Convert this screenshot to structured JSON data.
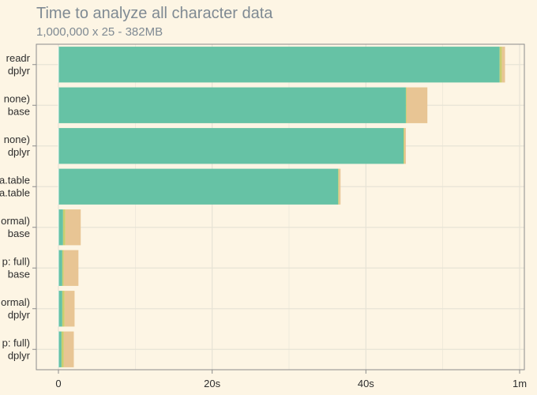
{
  "chart_data": {
    "type": "bar",
    "orientation": "horizontal",
    "stacked": true,
    "title": "Time to analyze all character data",
    "subtitle": "1,000,000 x 25 - 382MB",
    "xlabel": "",
    "ylabel": "",
    "xlim": [
      0,
      60
    ],
    "x_ticks": [
      {
        "value": 0,
        "label": "0"
      },
      {
        "value": 20,
        "label": "20s"
      },
      {
        "value": 40,
        "label": "40s"
      },
      {
        "value": 60,
        "label": "1m"
      }
    ],
    "grid": true,
    "legend": "none",
    "categories": [
      {
        "line1": "readr",
        "line2": "dplyr"
      },
      {
        "line1": "none)",
        "line2": "base"
      },
      {
        "line1": "none)",
        "line2": "dplyr"
      },
      {
        "line1": "a.table",
        "line2": "a.table"
      },
      {
        "line1": "ormal)",
        "line2": "base"
      },
      {
        "line1": "p: full)",
        "line2": "base"
      },
      {
        "line1": "ormal)",
        "line2": "dplyr"
      },
      {
        "line1": "p: full)",
        "line2": "dplyr"
      }
    ],
    "series": [
      {
        "color": "#66c2a5",
        "values": [
          57.4,
          45.2,
          44.9,
          36.4,
          0.6,
          0.5,
          0.5,
          0.4
        ]
      },
      {
        "color": "#c9ce6e",
        "values": [
          0.3,
          0.1,
          0.1,
          0.1,
          0.3,
          0.2,
          0.3,
          0.3
        ]
      },
      {
        "color": "#e8c594",
        "values": [
          0.4,
          2.7,
          0.2,
          0.2,
          2.0,
          1.9,
          1.3,
          1.3
        ]
      }
    ],
    "colors": {
      "background": "#fdf5e4",
      "grid": "#e7e3d6",
      "axis": "#8c8c8c",
      "text": "#2d2d2d",
      "title": "#7f8a93"
    }
  }
}
